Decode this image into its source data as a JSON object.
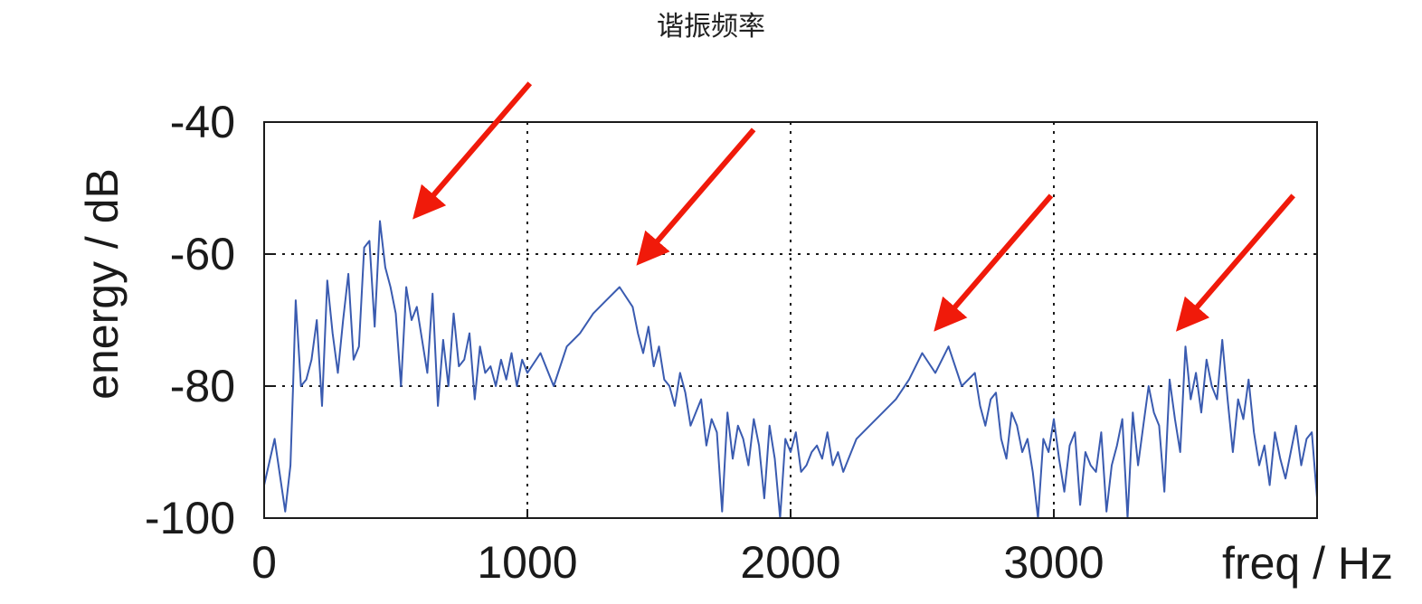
{
  "caption": "谐振频率",
  "colors": {
    "line": "#3a5bb0",
    "arrow": "#f01a0a",
    "axis": "#1a1a1a",
    "grid": "#1a1a1a"
  },
  "chart_data": {
    "type": "line",
    "title": "",
    "xlabel": "freq / Hz",
    "ylabel": "energy / dB",
    "xlim": [
      0,
      4000
    ],
    "ylim": [
      -100,
      -40
    ],
    "x_ticks": [
      0,
      1000,
      2000,
      3000
    ],
    "y_ticks": [
      -40,
      -60,
      -80,
      -100
    ],
    "x_tick_labels": [
      "0",
      "1000",
      "2000",
      "3000"
    ],
    "y_tick_labels": [
      "-40",
      "-60",
      "-80",
      "-100"
    ],
    "grid": true,
    "grid_style": "dotted",
    "series": [
      {
        "name": "",
        "x": [
          0,
          40,
          80,
          100,
          110,
          120,
          140,
          160,
          180,
          200,
          220,
          240,
          260,
          280,
          300,
          320,
          340,
          360,
          380,
          400,
          420,
          440,
          460,
          480,
          500,
          520,
          540,
          560,
          580,
          600,
          620,
          640,
          660,
          680,
          700,
          720,
          740,
          760,
          780,
          800,
          820,
          840,
          860,
          880,
          900,
          920,
          940,
          960,
          980,
          1000,
          1050,
          1100,
          1150,
          1200,
          1250,
          1300,
          1350,
          1400,
          1420,
          1440,
          1460,
          1480,
          1500,
          1520,
          1540,
          1560,
          1580,
          1600,
          1620,
          1640,
          1660,
          1680,
          1700,
          1720,
          1740,
          1760,
          1780,
          1800,
          1820,
          1840,
          1860,
          1880,
          1900,
          1920,
          1940,
          1960,
          1980,
          2000,
          2020,
          2040,
          2060,
          2080,
          2100,
          2120,
          2140,
          2160,
          2180,
          2200,
          2250,
          2300,
          2350,
          2400,
          2450,
          2500,
          2550,
          2600,
          2650,
          2700,
          2720,
          2740,
          2760,
          2780,
          2800,
          2820,
          2840,
          2860,
          2880,
          2900,
          2920,
          2940,
          2960,
          2980,
          3000,
          3020,
          3040,
          3060,
          3080,
          3100,
          3120,
          3140,
          3160,
          3180,
          3200,
          3220,
          3240,
          3260,
          3280,
          3300,
          3320,
          3340,
          3360,
          3380,
          3400,
          3420,
          3440,
          3460,
          3480,
          3500,
          3520,
          3540,
          3560,
          3580,
          3600,
          3620,
          3640,
          3660,
          3680,
          3700,
          3720,
          3740,
          3760,
          3780,
          3800,
          3820,
          3840,
          3860,
          3880,
          3900,
          3920,
          3940,
          3960,
          3980,
          4000
        ],
        "y": [
          -95,
          -88,
          -99,
          -92,
          -80,
          -67,
          -80,
          -79,
          -76,
          -70,
          -83,
          -64,
          -72,
          -78,
          -70,
          -63,
          -76,
          -74,
          -59,
          -58,
          -71,
          -55,
          -62,
          -65,
          -69,
          -80,
          -65,
          -70,
          -68,
          -73,
          -78,
          -66,
          -83,
          -73,
          -80,
          -69,
          -77,
          -76,
          -72,
          -82,
          -74,
          -78,
          -77,
          -80,
          -76,
          -79,
          -75,
          -80,
          -76,
          -78,
          -75,
          -80,
          -74,
          -72,
          -69,
          -67,
          -65,
          -68,
          -72,
          -75,
          -71,
          -77,
          -74,
          -79,
          -80,
          -83,
          -78,
          -81,
          -86,
          -84,
          -82,
          -89,
          -85,
          -87,
          -99,
          -84,
          -91,
          -86,
          -88,
          -92,
          -85,
          -89,
          -97,
          -86,
          -91,
          -100,
          -88,
          -90,
          -87,
          -93,
          -92,
          -90,
          -89,
          -91,
          -87,
          -92,
          -90,
          -93,
          -88,
          -86,
          -84,
          -82,
          -79,
          -75,
          -78,
          -74,
          -80,
          -78,
          -83,
          -86,
          -82,
          -81,
          -88,
          -91,
          -84,
          -86,
          -90,
          -88,
          -93,
          -100,
          -88,
          -90,
          -85,
          -91,
          -96,
          -89,
          -87,
          -98,
          -90,
          -92,
          -93,
          -87,
          -99,
          -92,
          -89,
          -85,
          -100,
          -84,
          -92,
          -86,
          -80,
          -84,
          -86,
          -96,
          -79,
          -85,
          -90,
          -74,
          -82,
          -78,
          -84,
          -76,
          -80,
          -82,
          -73,
          -82,
          -90,
          -82,
          -85,
          -79,
          -87,
          -92,
          -89,
          -95,
          -87,
          -91,
          -94,
          -90,
          -86,
          -92,
          -88,
          -87,
          -97
        ]
      }
    ],
    "annotations": [
      {
        "type": "arrow",
        "target_x": 580,
        "target_y": -54
      },
      {
        "type": "arrow",
        "target_x": 1430,
        "target_y": -61
      },
      {
        "type": "arrow",
        "target_x": 2560,
        "target_y": -71
      },
      {
        "type": "arrow",
        "target_x": 3480,
        "target_y": -71
      }
    ]
  }
}
